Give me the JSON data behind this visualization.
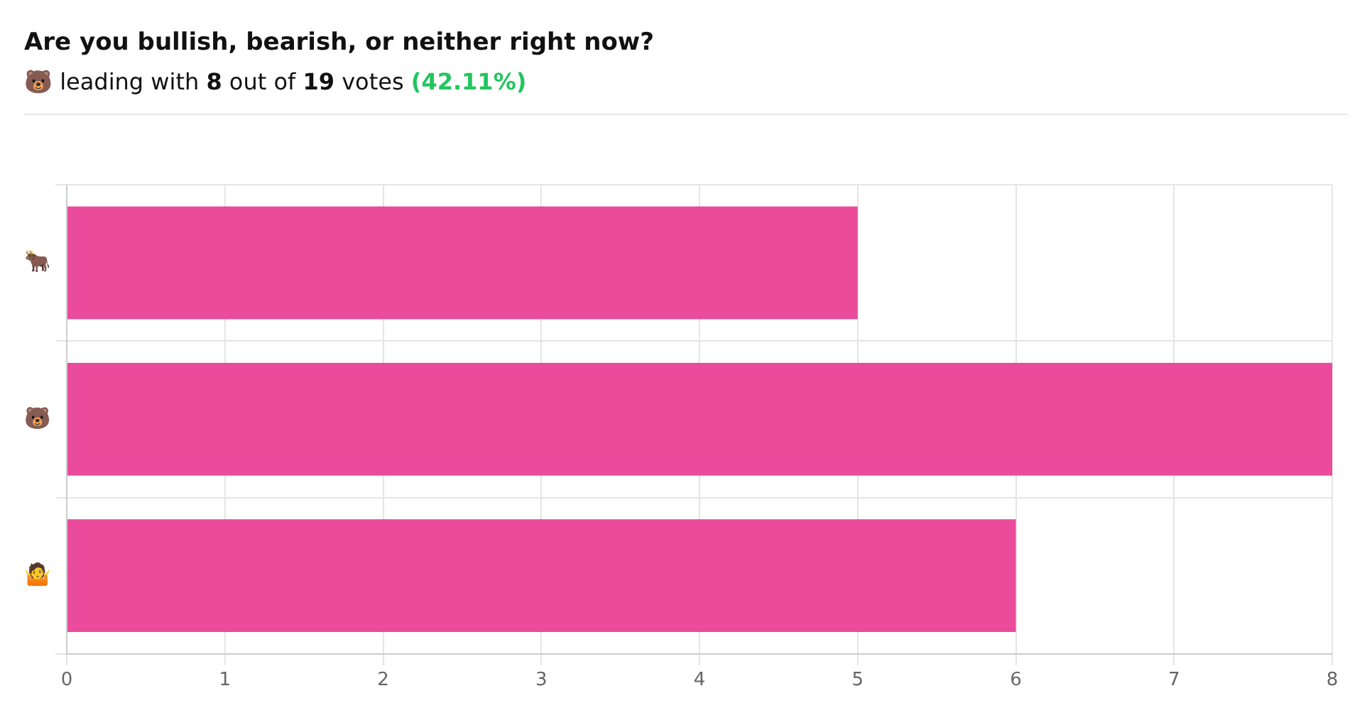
{
  "chart_data": {
    "type": "bar",
    "orientation": "horizontal",
    "title": "Are you bullish, bearish, or neither right now?",
    "subtitle": "🐻 leading with 8 out of 19 votes (42.11%)",
    "categories": [
      "🐂",
      "🐻",
      "🤷"
    ],
    "values": [
      5,
      8,
      6
    ],
    "color": "#ea4b9b",
    "xlim": [
      0,
      8
    ],
    "xticks": [
      0,
      1,
      2,
      3,
      4,
      5,
      6,
      7,
      8
    ],
    "grid": true,
    "legend": false
  }
}
